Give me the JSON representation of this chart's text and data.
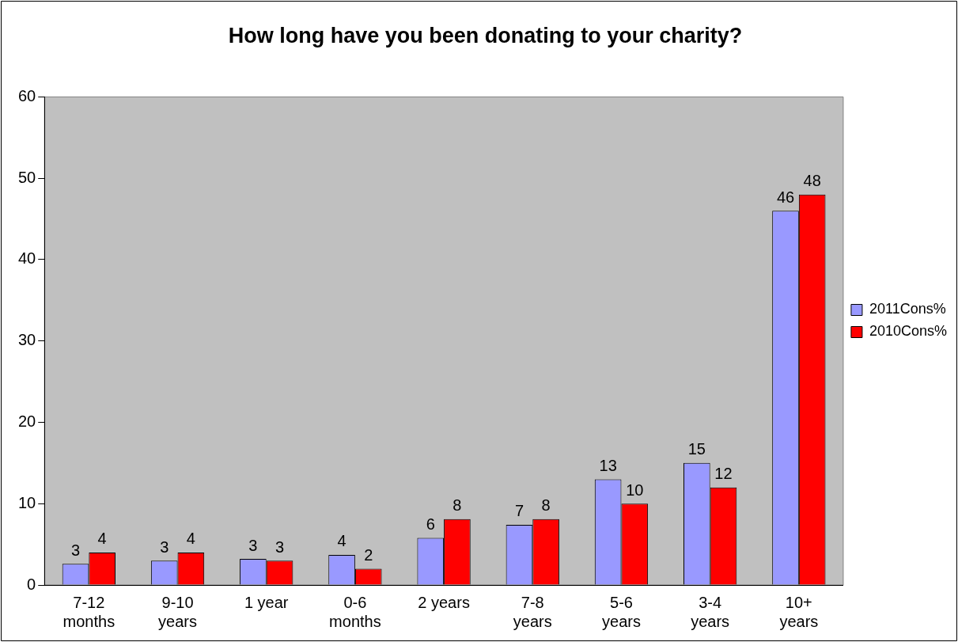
{
  "chart_data": {
    "type": "bar",
    "title": "How long have you been donating to your charity?",
    "categories": [
      "7-12\nmonths",
      "9-10\nyears",
      "1 year",
      "0-6\nmonths",
      "2 years",
      "7-8\nyears",
      "5-6\nyears",
      "3-4\nyears",
      "10+\nyears"
    ],
    "series": [
      {
        "name": "2011Cons%",
        "color": "#9999ff",
        "values": [
          2.6,
          3,
          3.2,
          3.7,
          5.8,
          7.4,
          13,
          15,
          46
        ],
        "value_labels": [
          "3",
          "3",
          "3",
          "4",
          "6",
          "7",
          "13",
          "15",
          "46"
        ]
      },
      {
        "name": "2010Cons%",
        "color": "#ff0000",
        "values": [
          4,
          4,
          3,
          2,
          8.1,
          8.1,
          10,
          12,
          48
        ],
        "value_labels": [
          "4",
          "4",
          "3",
          "2",
          "8",
          "8",
          "10",
          "12",
          "48"
        ]
      }
    ],
    "ylim": [
      0,
      60
    ],
    "yticks": [
      0,
      10,
      20,
      30,
      40,
      50,
      60
    ],
    "grid": false,
    "legend": "right"
  }
}
